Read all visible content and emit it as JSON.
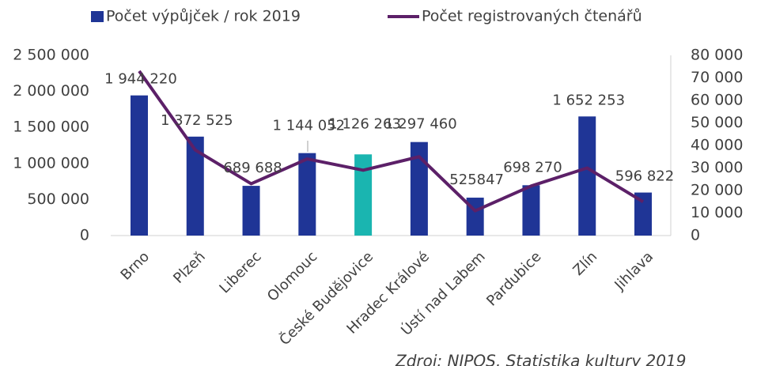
{
  "chart_data": {
    "type": "bar_line",
    "categories": [
      "Brno",
      "Plzeň",
      "Liberec",
      "Olomouc",
      "České Budějovice",
      "Hradec Králové",
      "Ústí nad Labem",
      "Pardubice",
      "Zlín",
      "Jihlava"
    ],
    "series": [
      {
        "name": "Počet výpůjček / rok 2019",
        "type": "bar",
        "color": "#1f3596",
        "colors": [
          "#1f3596",
          "#1f3596",
          "#1f3596",
          "#1f3596",
          "#1ab5b0",
          "#1f3596",
          "#1f3596",
          "#1f3596",
          "#1f3596",
          "#1f3596"
        ],
        "values": [
          1944220,
          1372525,
          689688,
          1144052,
          1126263,
          1297460,
          525847,
          698270,
          1652253,
          596822
        ],
        "value_labels": [
          "1 944 220",
          "1 372 525",
          "689 688",
          "1 144 052",
          "1 126 263",
          "1 297 460",
          "525847",
          "698 270",
          "1 652 253",
          "596 822"
        ]
      },
      {
        "name": "Počet registrovaných čtenářů",
        "type": "line",
        "color": "#5c2068",
        "axis": "y2",
        "values": [
          73000,
          38000,
          23000,
          34000,
          29000,
          35000,
          11000,
          22000,
          30000,
          15000
        ]
      }
    ],
    "ylim": [
      0,
      2500000
    ],
    "yticks": [
      0,
      {
        "value": 500000,
        "label": "500 000"
      },
      {
        "value": 1000000,
        "label": "1 000 000"
      },
      {
        "value": 1500000,
        "label": "1 500 000"
      },
      {
        "value": 2000000,
        "label": "2 000 000"
      },
      {
        "value": 2500000,
        "label": "2 500 000"
      }
    ],
    "y2lim": [
      0,
      80000
    ],
    "y2ticks": [
      0,
      {
        "value": 10000,
        "label": "10 000"
      },
      {
        "value": 20000,
        "label": "20 000"
      },
      {
        "value": 30000,
        "label": "30 000"
      },
      {
        "value": 40000,
        "label": "40 000"
      },
      {
        "value": 50000,
        "label": "50 000"
      },
      {
        "value": 60000,
        "label": "60 000"
      },
      {
        "value": 70000,
        "label": "70 000"
      },
      {
        "value": 80000,
        "label": "80 000"
      }
    ],
    "legend": "top",
    "annotation": "Zdroj: NIPOS, Statistika kultury 2019"
  }
}
